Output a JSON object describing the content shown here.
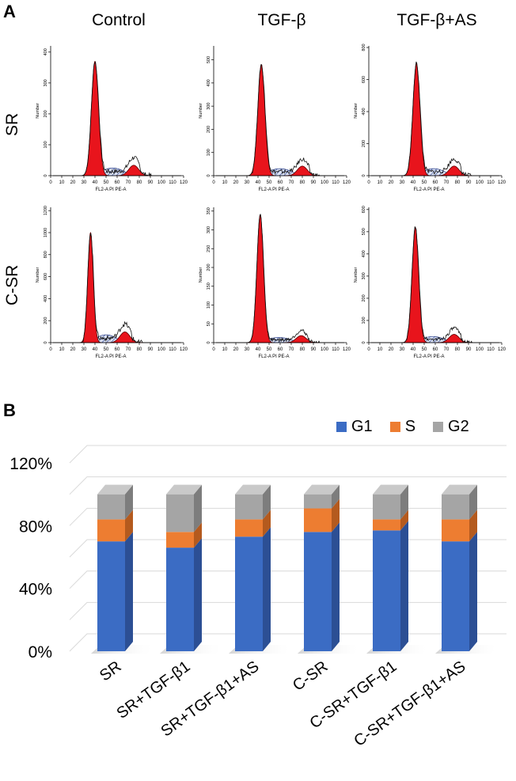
{
  "panel_a_label": "A",
  "panel_b_label": "B",
  "columns": [
    "Control",
    "TGF-β",
    "TGF-β+AS"
  ],
  "rows": [
    "SR",
    "C-SR"
  ],
  "histograms": [
    {
      "id": "sr-control",
      "yticks": [
        0,
        100,
        200,
        300,
        400
      ],
      "ymax": 420,
      "g1_peak": 370,
      "g2_peak": 45,
      "g1_pos": 40,
      "g2_pos": 75,
      "sigma1": 3.2
    },
    {
      "id": "sr-tgf",
      "yticks": [
        0,
        100,
        200,
        300,
        400,
        500
      ],
      "ymax": 560,
      "g1_peak": 480,
      "g2_peak": 55,
      "g1_pos": 43,
      "g2_pos": 80,
      "sigma1": 3.2
    },
    {
      "id": "sr-tgfas",
      "yticks": [
        0,
        200,
        400,
        600,
        800
      ],
      "ymax": 810,
      "g1_peak": 700,
      "g2_peak": 80,
      "g1_pos": 43,
      "g2_pos": 77,
      "sigma1": 3.2
    },
    {
      "id": "csr-control",
      "yticks": [
        0,
        200,
        400,
        600,
        800,
        1000,
        1200
      ],
      "ymax": 1230,
      "g1_peak": 1000,
      "g2_peak": 130,
      "g1_pos": 36,
      "g2_pos": 67,
      "sigma1": 2.5
    },
    {
      "id": "csr-tgf",
      "yticks": [
        0,
        50,
        100,
        150,
        200,
        250,
        300,
        350
      ],
      "ymax": 360,
      "g1_peak": 340,
      "g2_peak": 25,
      "g1_pos": 42,
      "g2_pos": 79,
      "sigma1": 3.0
    },
    {
      "id": "csr-tgfas",
      "yticks": [
        0,
        100,
        200,
        300,
        400,
        500,
        600
      ],
      "ymax": 610,
      "g1_peak": 520,
      "g2_peak": 50,
      "g1_pos": 42,
      "g2_pos": 77,
      "sigma1": 3.0
    }
  ],
  "hist_xticks": [
    0,
    10,
    20,
    30,
    40,
    50,
    60,
    70,
    80,
    90,
    100,
    110,
    120
  ],
  "hist_xlabel": "FL2-A PI PE-A",
  "hist_ylabel": "Number",
  "colors": {
    "g1": "#3b6cc4",
    "s": "#ed7d31",
    "g2": "#a5a5a5",
    "peak": "#e8141c"
  },
  "chart_data": {
    "type": "bar",
    "stacked": true,
    "categories": [
      "SR",
      "SR+TGF-β1",
      "SR+TGF-β1+AS",
      "C-SR",
      "C-SR+TGF-β1",
      "C-SR+TGF-β1+AS"
    ],
    "series": [
      {
        "name": "G1",
        "values": [
          70,
          66,
          73,
          76,
          77,
          70
        ]
      },
      {
        "name": "S",
        "values": [
          14,
          10,
          11,
          15,
          7,
          14
        ]
      },
      {
        "name": "G2",
        "values": [
          16,
          24,
          16,
          9,
          16,
          16
        ]
      }
    ],
    "yticks": [
      "0%",
      "40%",
      "80%",
      "120%"
    ],
    "ylim": [
      0,
      120
    ],
    "legend": "top-right"
  }
}
